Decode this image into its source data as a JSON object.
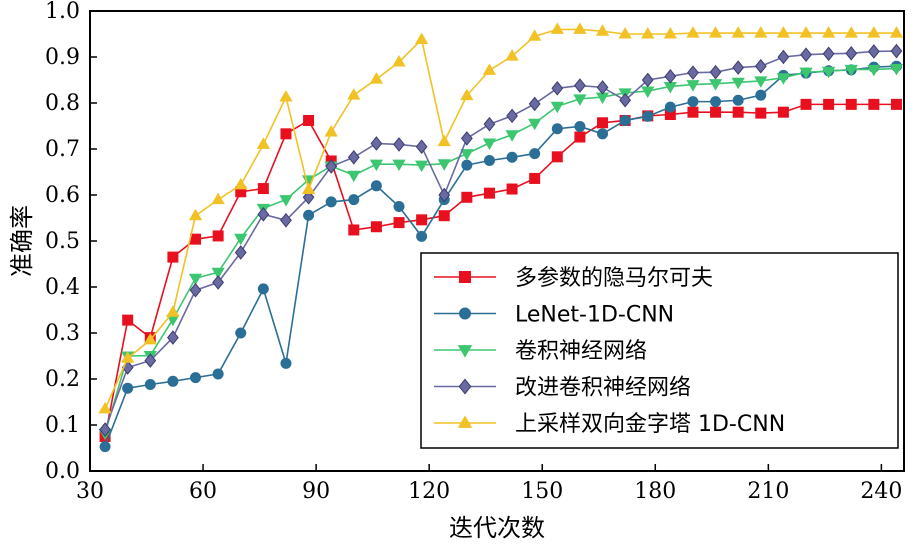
{
  "chart_data": {
    "type": "line",
    "xlabel": "迭代次数",
    "ylabel": "准确率",
    "xlim": [
      30,
      246
    ],
    "ylim": [
      0,
      1
    ],
    "xticks": [
      30,
      60,
      90,
      120,
      150,
      180,
      210,
      240
    ],
    "yticks": [
      0.0,
      0.1,
      0.2,
      0.3,
      0.4,
      0.5,
      0.6,
      0.7,
      0.8,
      0.9,
      1.0
    ],
    "ytick_labels": [
      "0.0",
      "0.1",
      "0.2",
      "0.3",
      "0.4",
      "0.5",
      "0.6",
      "0.7",
      "0.8",
      "0.9",
      "1.0"
    ],
    "grid": false,
    "legend_position": "lower-right",
    "x": [
      34,
      40,
      46,
      52,
      58,
      64,
      70,
      76,
      82,
      88,
      94,
      100,
      106,
      112,
      118,
      124,
      130,
      136,
      142,
      148,
      154,
      160,
      166,
      172,
      178,
      184,
      190,
      196,
      202,
      208,
      214,
      220,
      226,
      232,
      238,
      244
    ],
    "series": [
      {
        "name": "多参数的隐马尔可夫",
        "color": "#e8101e",
        "marker": "square",
        "values": [
          0.075,
          0.328,
          0.29,
          0.465,
          0.504,
          0.511,
          0.607,
          0.614,
          0.733,
          0.762,
          0.674,
          0.524,
          0.531,
          0.54,
          0.546,
          0.555,
          0.595,
          0.604,
          0.613,
          0.636,
          0.683,
          0.726,
          0.757,
          0.762,
          0.772,
          0.775,
          0.78,
          0.78,
          0.78,
          0.778,
          0.78,
          0.797,
          0.797,
          0.797,
          0.797,
          0.797
        ]
      },
      {
        "name": "LeNet-1D-CNN",
        "color": "#2b6e96",
        "marker": "circle",
        "values": [
          0.053,
          0.18,
          0.188,
          0.195,
          0.203,
          0.211,
          0.3,
          0.396,
          0.234,
          0.556,
          0.585,
          0.59,
          0.62,
          0.575,
          0.51,
          0.59,
          0.665,
          0.675,
          0.682,
          0.69,
          0.744,
          0.749,
          0.733,
          0.762,
          0.771,
          0.791,
          0.803,
          0.803,
          0.806,
          0.817,
          0.86,
          0.865,
          0.87,
          0.872,
          0.878,
          0.88
        ]
      },
      {
        "name": "卷积神经网络",
        "color": "#3dc670",
        "marker": "triangle-down",
        "values": [
          0.082,
          0.25,
          0.251,
          0.33,
          0.419,
          0.432,
          0.506,
          0.571,
          0.59,
          0.633,
          0.663,
          0.643,
          0.667,
          0.667,
          0.665,
          0.668,
          0.69,
          0.713,
          0.731,
          0.756,
          0.793,
          0.809,
          0.813,
          0.822,
          0.826,
          0.836,
          0.84,
          0.842,
          0.845,
          0.848,
          0.855,
          0.867,
          0.869,
          0.873,
          0.873,
          0.875
        ]
      },
      {
        "name": "改进卷积神经网络",
        "color": "#6a6aa3",
        "marker": "diamond",
        "values": [
          0.09,
          0.225,
          0.24,
          0.29,
          0.393,
          0.41,
          0.475,
          0.558,
          0.545,
          0.595,
          0.662,
          0.682,
          0.712,
          0.71,
          0.705,
          0.6,
          0.723,
          0.754,
          0.772,
          0.798,
          0.832,
          0.838,
          0.834,
          0.806,
          0.85,
          0.858,
          0.866,
          0.867,
          0.877,
          0.88,
          0.9,
          0.905,
          0.907,
          0.908,
          0.912,
          0.913
        ]
      },
      {
        "name": "上采样双向金字塔 1D-CNN",
        "color": "#f2c125",
        "marker": "triangle-up",
        "values": [
          0.135,
          0.245,
          0.285,
          0.345,
          0.555,
          0.59,
          0.622,
          0.71,
          0.813,
          0.612,
          0.737,
          0.817,
          0.852,
          0.889,
          0.938,
          0.716,
          0.816,
          0.871,
          0.902,
          0.945,
          0.96,
          0.96,
          0.956,
          0.95,
          0.95,
          0.95,
          0.952,
          0.952,
          0.952,
          0.952,
          0.952,
          0.952,
          0.952,
          0.952,
          0.952,
          0.952
        ]
      }
    ]
  }
}
